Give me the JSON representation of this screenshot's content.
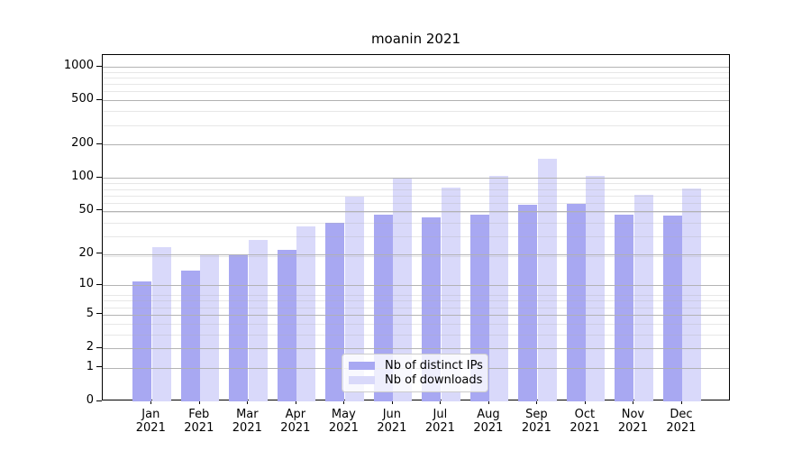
{
  "title": "moanin 2021",
  "legend": {
    "items": [
      {
        "label": "Nb of distinct IPs",
        "color": "#a8a8f2"
      },
      {
        "label": "Nb of downloads",
        "color": "#d9d9fa"
      }
    ]
  },
  "colors": {
    "bar_dark": "#a8a8f2",
    "bar_light": "#d9d9fa",
    "grid_major": "#b0b0b0",
    "grid_minor": "#e9e9e9",
    "axis": "#000000",
    "background": "#ffffff"
  },
  "chart_data": {
    "type": "bar",
    "title": "moanin 2021",
    "categories": [
      "Jan 2021",
      "Feb 2021",
      "Mar 2021",
      "Apr 2021",
      "May 2021",
      "Jun 2021",
      "Jul 2021",
      "Aug 2021",
      "Sep 2021",
      "Oct 2021",
      "Nov 2021",
      "Dec 2021"
    ],
    "series": [
      {
        "name": "Nb of distinct IPs",
        "color": "#a8a8f2",
        "values": [
          11,
          14,
          20,
          22,
          39,
          46,
          44,
          46,
          57,
          58,
          46,
          45
        ]
      },
      {
        "name": "Nb of downloads",
        "color": "#d9d9fa",
        "values": [
          23,
          20,
          27,
          36,
          67,
          101,
          82,
          105,
          150,
          104,
          70,
          80
        ]
      }
    ],
    "xlabel": "",
    "ylabel": "",
    "yscale": "log10(value+1)",
    "y_ticks": [
      0,
      1,
      2,
      5,
      10,
      20,
      50,
      100,
      200,
      500,
      1000
    ],
    "ylim": [
      0,
      1275
    ],
    "grid": "both-horizontal",
    "legend_position": "lower-center-inside"
  }
}
